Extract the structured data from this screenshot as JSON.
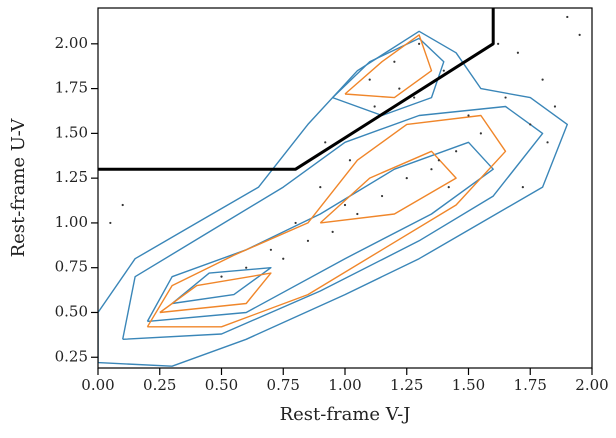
{
  "chart_data": {
    "type": "scatter",
    "x_label": "Rest-frame V-J",
    "y_label": "Rest-frame U-V",
    "xlim": [
      0,
      2
    ],
    "ylim": [
      0.19,
      2.2
    ],
    "xticks": [
      {
        "value": 0,
        "label": "0.00"
      },
      0.25,
      {
        "value": 0.5,
        "label": "0.50"
      },
      0.75,
      {
        "value": 1,
        "label": "1.00"
      },
      1.25,
      {
        "value": 1.5,
        "label": "1.50"
      },
      1.75,
      {
        "value": 2,
        "label": "2.00"
      }
    ],
    "yticks": [
      0.25,
      {
        "value": 0.5,
        "label": "0.50"
      },
      0.75,
      {
        "value": 1,
        "label": "1.00"
      },
      1.25,
      {
        "value": 1.5,
        "label": "1.50"
      },
      1.75,
      {
        "value": 2,
        "label": "2.00"
      }
    ],
    "points": {
      "color": "#333333",
      "x": [
        1.2,
        1.3,
        1.1,
        1.4,
        0.9,
        1.0,
        1.5,
        1.6,
        1.7,
        1.8,
        1.9,
        1.35,
        1.25,
        1.15,
        1.05,
        0.95,
        0.85,
        0.75,
        1.45,
        1.55,
        1.65,
        1.75,
        1.85,
        1.95,
        0.5,
        0.6,
        0.7,
        0.8,
        1.22,
        1.28,
        1.12,
        1.38,
        1.42,
        1.02,
        0.92,
        0.05,
        0.1,
        1.62,
        1.72,
        1.82
      ],
      "y": [
        1.9,
        2.0,
        1.8,
        1.85,
        1.2,
        1.1,
        1.6,
        2.1,
        1.95,
        1.8,
        2.15,
        1.3,
        1.25,
        1.15,
        1.05,
        0.95,
        0.9,
        0.8,
        1.4,
        1.5,
        1.7,
        1.55,
        1.65,
        2.05,
        0.7,
        0.75,
        0.85,
        1.0,
        1.75,
        1.7,
        1.65,
        1.35,
        1.2,
        1.35,
        1.45,
        1.0,
        1.1,
        2.0,
        1.2,
        1.45
      ]
    },
    "contours": [
      {
        "color": "#3a86b8",
        "x": [
          0.0,
          0.0,
          0.15,
          0.4,
          0.65,
          0.85,
          1.05,
          1.3,
          1.45,
          1.55,
          1.75,
          1.9,
          1.8,
          1.55,
          1.3,
          1.0,
          0.6,
          0.3,
          0.0
        ],
        "y": [
          0.22,
          0.5,
          0.8,
          1.0,
          1.2,
          1.55,
          1.85,
          2.07,
          1.95,
          1.75,
          1.7,
          1.55,
          1.2,
          1.0,
          0.8,
          0.6,
          0.35,
          0.2,
          0.22
        ]
      },
      {
        "color": "#3a86b8",
        "x": [
          0.1,
          0.15,
          0.45,
          0.75,
          1.0,
          1.3,
          1.65,
          1.8,
          1.6,
          1.3,
          0.9,
          0.5,
          0.1
        ],
        "y": [
          0.35,
          0.7,
          0.95,
          1.2,
          1.45,
          1.6,
          1.65,
          1.5,
          1.15,
          0.9,
          0.62,
          0.38,
          0.35
        ]
      },
      {
        "color": "#3a86b8",
        "x": [
          0.95,
          1.1,
          1.3,
          1.4,
          1.35,
          1.15,
          0.95
        ],
        "y": [
          1.7,
          1.9,
          2.03,
          1.9,
          1.7,
          1.6,
          1.7
        ]
      },
      {
        "color": "#3a86b8",
        "x": [
          0.2,
          0.3,
          0.6,
          0.9,
          1.2,
          1.5,
          1.6,
          1.35,
          1.0,
          0.6,
          0.2
        ],
        "y": [
          0.45,
          0.7,
          0.85,
          1.05,
          1.3,
          1.45,
          1.3,
          1.05,
          0.8,
          0.5,
          0.45
        ]
      },
      {
        "color": "#3a86b8",
        "x": [
          0.3,
          0.45,
          0.7,
          0.55,
          0.3
        ],
        "y": [
          0.55,
          0.72,
          0.75,
          0.6,
          0.55
        ]
      },
      {
        "color": "#f0862a",
        "x": [
          0.2,
          0.3,
          0.55,
          0.85,
          1.05,
          1.25,
          1.55,
          1.65,
          1.45,
          1.15,
          0.85,
          0.5,
          0.2
        ],
        "y": [
          0.42,
          0.65,
          0.82,
          1.0,
          1.35,
          1.55,
          1.6,
          1.4,
          1.1,
          0.85,
          0.6,
          0.42,
          0.42
        ]
      },
      {
        "color": "#f0862a",
        "x": [
          1.0,
          1.15,
          1.3,
          1.35,
          1.2,
          1.0
        ],
        "y": [
          1.72,
          1.9,
          2.05,
          1.85,
          1.7,
          1.72
        ]
      },
      {
        "color": "#f0862a",
        "x": [
          0.25,
          0.4,
          0.7,
          0.6,
          0.25
        ],
        "y": [
          0.5,
          0.65,
          0.72,
          0.55,
          0.5
        ]
      },
      {
        "color": "#f0862a",
        "x": [
          0.9,
          1.1,
          1.35,
          1.45,
          1.2,
          0.9
        ],
        "y": [
          1.0,
          1.25,
          1.4,
          1.25,
          1.05,
          1.0
        ]
      }
    ],
    "boundary": {
      "color": "#000000",
      "x": [
        0,
        0.8,
        1.6,
        1.6
      ],
      "y": [
        1.3,
        1.3,
        2.0,
        2.2
      ]
    }
  }
}
